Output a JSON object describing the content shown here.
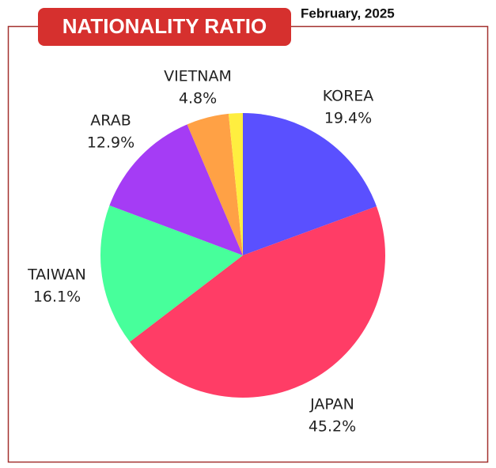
{
  "chart_data": {
    "type": "pie",
    "title": "NATIONALITY RATIO",
    "subtitle": "February, 2025",
    "categories": [
      "KOREA",
      "JAPAN",
      "TAIWAN",
      "ARAB",
      "VIETNAM",
      null
    ],
    "values": [
      19.4,
      45.2,
      16.1,
      12.9,
      4.8,
      1.6
    ],
    "value_labels": [
      "19.4%",
      "45.2%",
      "16.1%",
      "12.9%",
      "4.8%",
      null
    ],
    "colors": [
      "#5a50ff",
      "#ff3d66",
      "#47ff9b",
      "#a53cf5",
      "#ffa145",
      "#ffee3f"
    ]
  }
}
